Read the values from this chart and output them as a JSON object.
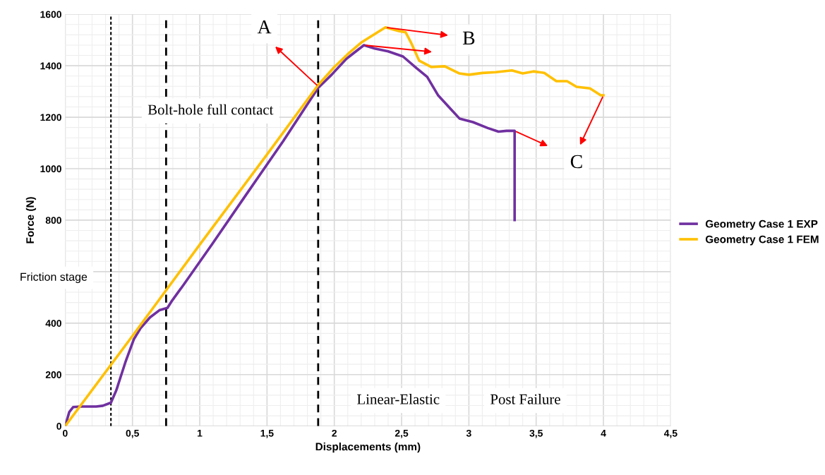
{
  "chart_data": {
    "type": "line",
    "xlabel": "Displacements (mm)",
    "ylabel": "Force (N)",
    "xlim": [
      0,
      4.5
    ],
    "ylim": [
      0,
      1600
    ],
    "xticks": [
      0,
      {
        "value": 0.5,
        "label": "0,5"
      },
      1,
      {
        "value": 1.5,
        "label": "1,5"
      },
      2,
      {
        "value": 2.5,
        "label": "2,5"
      },
      3,
      {
        "value": 3.5,
        "label": "3,5"
      },
      4,
      {
        "value": 4.5,
        "label": "4,5"
      }
    ],
    "yticks": [
      0,
      200,
      400,
      {
        "value": 600,
        "label": null
      },
      800,
      1000,
      1200,
      1400,
      1600
    ],
    "grid": true,
    "legend": "right",
    "marker": "none",
    "line_style": "solid",
    "series": [
      {
        "name": "Geometry Case 1 EXP",
        "color": "#7030a0",
        "x": [
          0,
          0.03,
          0.06,
          0.12,
          0.23,
          0.28,
          0.34,
          0.38,
          0.45,
          0.51,
          0.56,
          0.63,
          0.7,
          0.76,
          0.79,
          0.88,
          1.09,
          1.35,
          1.62,
          1.88,
          1.98,
          2.09,
          2.22,
          2.3,
          2.4,
          2.51,
          2.61,
          2.69,
          2.77,
          2.87,
          2.93,
          3.03,
          3.14,
          3.22,
          3.28,
          3.34,
          3.34
        ],
        "values": [
          0,
          54,
          74,
          76,
          76,
          79,
          91,
          139,
          252,
          337,
          380,
          422,
          450,
          459,
          484,
          549,
          705,
          903,
          1107,
          1314,
          1365,
          1427,
          1480,
          1467,
          1456,
          1436,
          1391,
          1357,
          1286,
          1229,
          1195,
          1181,
          1158,
          1144,
          1147,
          1147,
          801
        ]
      },
      {
        "name": "Geometry Case 1 FEM",
        "color": "#ffc000",
        "x": [
          0,
          0.5,
          1,
          1.5,
          1.88,
          2.0,
          2.1,
          2.2,
          2.38,
          2.48,
          2.53,
          2.57,
          2.63,
          2.72,
          2.82,
          2.93,
          3.0,
          3.1,
          3.2,
          3.32,
          3.4,
          3.48,
          3.56,
          3.65,
          3.73,
          3.8,
          3.9,
          3.98,
          4.0
        ],
        "values": [
          0,
          350,
          705,
          1055,
          1325,
          1395,
          1445,
          1490,
          1549,
          1535,
          1530,
          1490,
          1420,
          1395,
          1398,
          1370,
          1365,
          1372,
          1375,
          1382,
          1370,
          1378,
          1372,
          1340,
          1340,
          1318,
          1312,
          1285,
          1285
        ]
      }
    ],
    "ref_lines": [
      {
        "axis": "x",
        "value": 0.34,
        "color": "#000000",
        "line_style": "dotted"
      },
      {
        "axis": "x",
        "value": 0.75,
        "color": "#000000",
        "line_style": "dashed"
      },
      {
        "axis": "x",
        "value": 1.88,
        "color": "#000000",
        "line_style": "dashed"
      }
    ],
    "annotations": [
      "Bolt-hole full contact",
      "Friction stage",
      "Linear-Elastic",
      "Post Failure",
      {
        "text": "A",
        "x": 1.88,
        "y": 1320
      },
      {
        "text": "B",
        "x": 2.38,
        "y": 1549
      },
      {
        "text": "C",
        "x": 4.0,
        "y": 1285
      }
    ]
  }
}
